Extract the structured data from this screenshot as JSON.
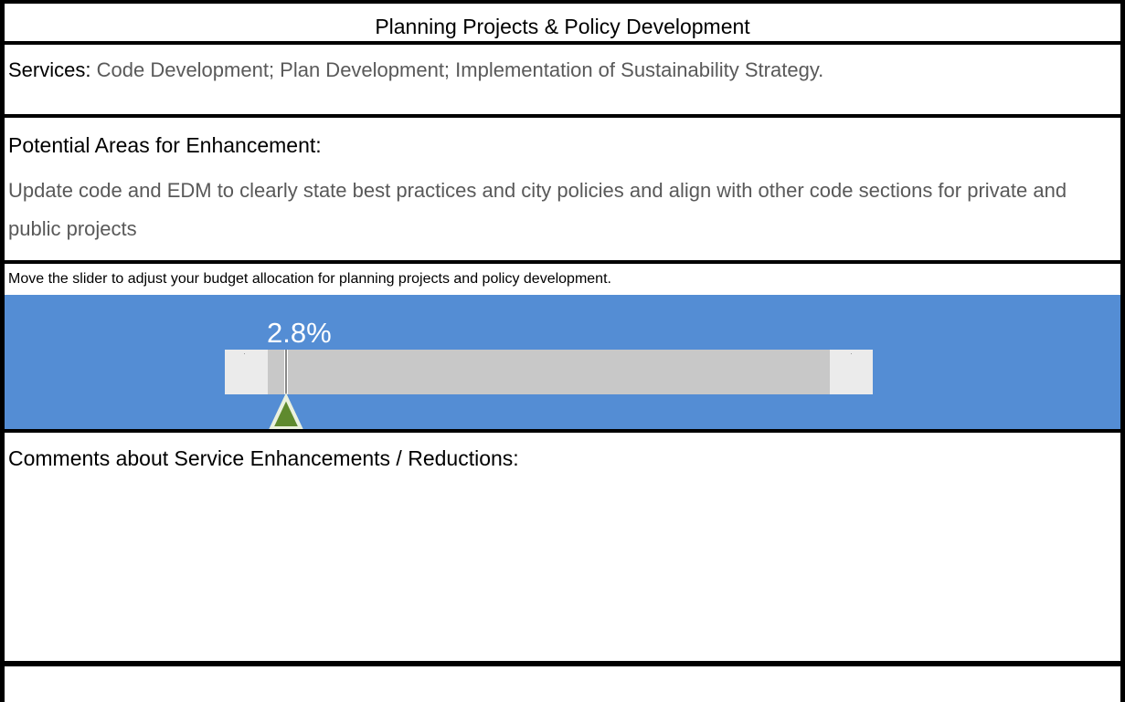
{
  "title": "Planning Projects & Policy Development",
  "services": {
    "label": "Services:",
    "text": "Code Development; Plan Development; Implementation of Sustainability Strategy."
  },
  "enhancement": {
    "heading": "Potential Areas for Enhancement:",
    "text": "Update code and EDM to clearly state best practices and city policies and align with other code sections for private and public projects"
  },
  "slider": {
    "instruction": "Move the slider to adjust your budget allocation for planning projects and policy development.",
    "value_label": "2.8%"
  },
  "comments": {
    "heading": "Comments about Service Enhancements / Reductions:"
  }
}
